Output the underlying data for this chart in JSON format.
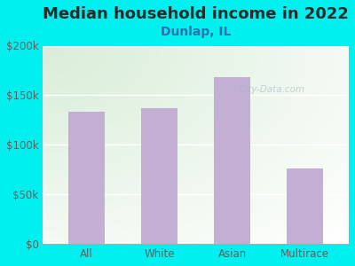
{
  "title": "Median household income in 2022",
  "subtitle": "Dunlap, IL",
  "categories": [
    "All",
    "White",
    "Asian",
    "Multirace"
  ],
  "values": [
    133000,
    137000,
    168000,
    76000
  ],
  "bar_color": "#c4afd4",
  "background_outer": "#00efef",
  "title_color": "#2a2a2a",
  "subtitle_color": "#3070b0",
  "tick_color": "#606060",
  "ylim": [
    0,
    200000
  ],
  "yticks": [
    0,
    50000,
    100000,
    150000,
    200000
  ],
  "ytick_labels": [
    "$0",
    "$50k",
    "$100k",
    "$150k",
    "$200k"
  ],
  "watermark": "City-Data.com",
  "title_fontsize": 13,
  "subtitle_fontsize": 10,
  "tick_fontsize": 8.5
}
